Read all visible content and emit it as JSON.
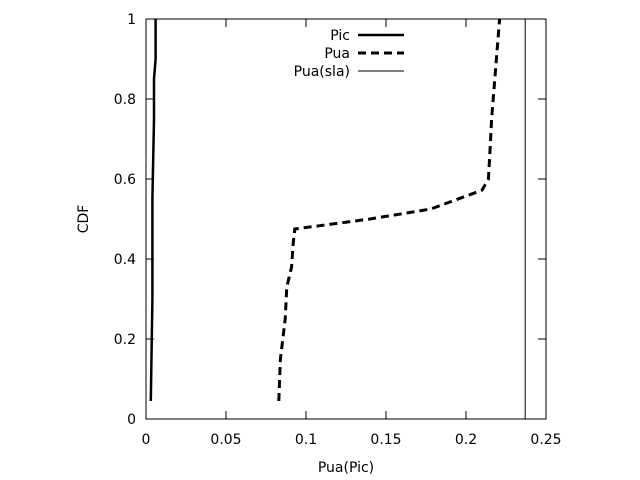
{
  "chart_data": {
    "type": "line",
    "title": "",
    "xlabel": "Pua(Pic)",
    "ylabel": "CDF",
    "xlim": [
      0,
      0.25
    ],
    "ylim": [
      0,
      1
    ],
    "xticks": [
      0,
      0.05,
      0.1,
      0.15,
      0.2,
      0.25
    ],
    "xtick_labels": [
      "0",
      "0.05",
      "0.1",
      "0.15",
      "0.2",
      "0.25"
    ],
    "yticks": [
      0,
      0.2,
      0.4,
      0.6,
      0.8,
      1
    ],
    "ytick_labels": [
      "0",
      "0.2",
      "0.4",
      "0.6",
      "0.8",
      "1"
    ],
    "grid": false,
    "legend_position": "top-center",
    "series": [
      {
        "name": "Pic",
        "style": "solid-thick",
        "color": "#000000",
        "x": [
          0.003,
          0.004,
          0.004,
          0.005,
          0.005,
          0.006,
          0.006
        ],
        "y": [
          0.045,
          0.3,
          0.55,
          0.75,
          0.85,
          0.9,
          1.0
        ]
      },
      {
        "name": "Pua",
        "style": "dashed-thick",
        "color": "#000000",
        "x": [
          0.083,
          0.084,
          0.087,
          0.088,
          0.091,
          0.092,
          0.093,
          0.14,
          0.178,
          0.21,
          0.214,
          0.215,
          0.216,
          0.218,
          0.219,
          0.22,
          0.221
        ],
        "y": [
          0.045,
          0.15,
          0.25,
          0.33,
          0.38,
          0.44,
          0.475,
          0.5,
          0.525,
          0.572,
          0.6,
          0.67,
          0.75,
          0.85,
          0.9,
          0.95,
          1.0
        ]
      },
      {
        "name": "Pua(sla)",
        "style": "solid-thin",
        "color": "#000000",
        "x": [
          0.237,
          0.237
        ],
        "y": [
          0,
          1
        ]
      }
    ]
  }
}
